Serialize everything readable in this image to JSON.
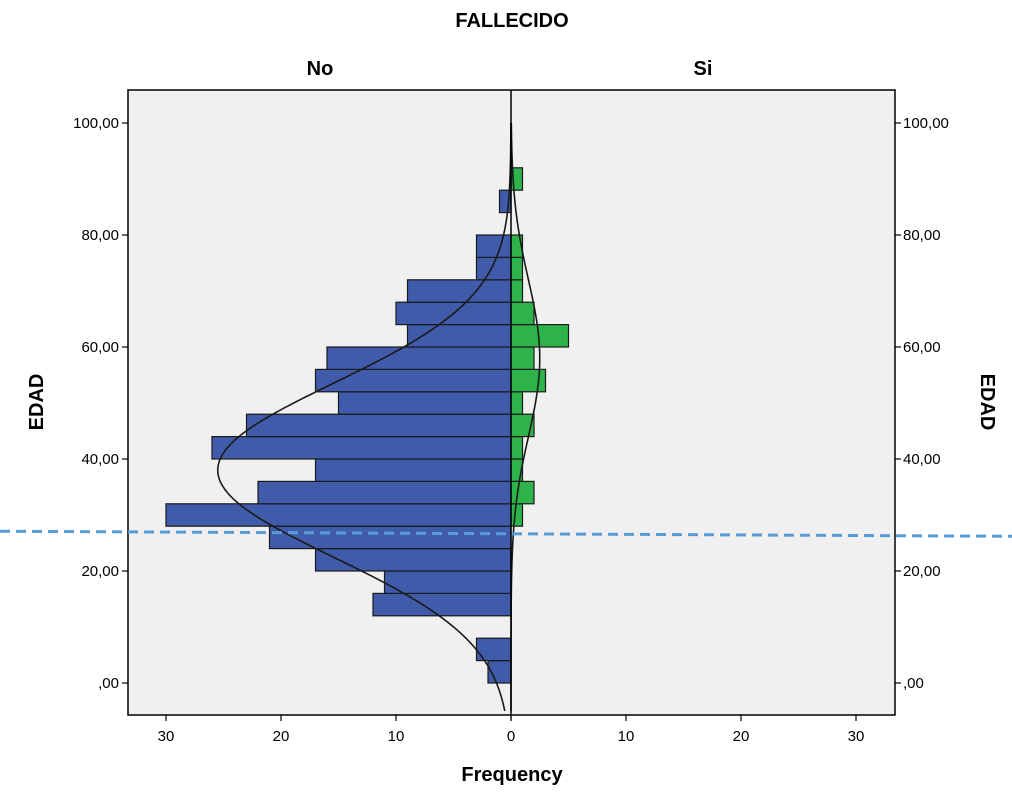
{
  "chart_data": {
    "type": "bar",
    "title": "FALLECIDO",
    "xlabel": "Frequency",
    "ylabel": "EDAD",
    "ylabel_right": "EDAD",
    "y_ticks": [
      0,
      20,
      40,
      60,
      80,
      100
    ],
    "y_tick_labels": [
      ",00",
      "20,00",
      "40,00",
      "60,00",
      "80,00",
      "100,00"
    ],
    "ylim": [
      -5,
      106
    ],
    "x_ticks_left": [
      30,
      20,
      10,
      0
    ],
    "x_tick_labels_left": [
      "30",
      "20",
      "10",
      "0"
    ],
    "x_ticks_right": [
      0,
      10,
      20,
      30
    ],
    "x_tick_labels_right": [
      "0",
      "10",
      "20",
      "30"
    ],
    "xlim": [
      0,
      33.5
    ],
    "bin_width": 4,
    "panel_background": "#f0f0f0",
    "grid": false,
    "series": [
      {
        "name": "No",
        "color": "#3f5ba9",
        "bins": [
          {
            "y": 2,
            "value": 2
          },
          {
            "y": 6,
            "value": 3
          },
          {
            "y": 14,
            "value": 12
          },
          {
            "y": 18,
            "value": 11
          },
          {
            "y": 22,
            "value": 17
          },
          {
            "y": 26,
            "value": 21
          },
          {
            "y": 30,
            "value": 30
          },
          {
            "y": 34,
            "value": 22
          },
          {
            "y": 38,
            "value": 17
          },
          {
            "y": 42,
            "value": 26
          },
          {
            "y": 46,
            "value": 23
          },
          {
            "y": 50,
            "value": 15
          },
          {
            "y": 54,
            "value": 17
          },
          {
            "y": 58,
            "value": 16
          },
          {
            "y": 62,
            "value": 9
          },
          {
            "y": 66,
            "value": 10
          },
          {
            "y": 70,
            "value": 9
          },
          {
            "y": 74,
            "value": 3
          },
          {
            "y": 78,
            "value": 3
          },
          {
            "y": 86,
            "value": 1
          }
        ],
        "normal_curve": {
          "mean": 38,
          "sd": 15.5,
          "peak": 25.5
        }
      },
      {
        "name": "Si",
        "color": "#2db34a",
        "bins": [
          {
            "y": 30,
            "value": 1
          },
          {
            "y": 34,
            "value": 2
          },
          {
            "y": 38,
            "value": 1
          },
          {
            "y": 42,
            "value": 1
          },
          {
            "y": 46,
            "value": 2
          },
          {
            "y": 50,
            "value": 1
          },
          {
            "y": 54,
            "value": 3
          },
          {
            "y": 58,
            "value": 2
          },
          {
            "y": 62,
            "value": 5
          },
          {
            "y": 66,
            "value": 2
          },
          {
            "y": 70,
            "value": 1
          },
          {
            "y": 74,
            "value": 1
          },
          {
            "y": 78,
            "value": 1
          },
          {
            "y": 90,
            "value": 1
          }
        ],
        "normal_curve": {
          "mean": 58,
          "sd": 14,
          "peak": 2.5
        }
      }
    ],
    "annotations": [
      {
        "type": "dashed-line",
        "color": "#5b9bd5",
        "y_start": 27.1,
        "y_end": 26.2
      }
    ]
  }
}
